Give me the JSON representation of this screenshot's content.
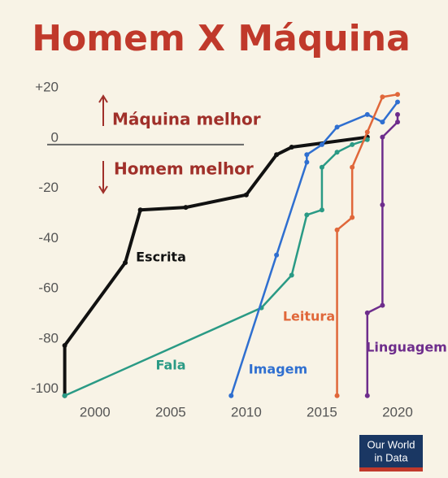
{
  "chart_data": {
    "type": "line",
    "title": "Homem X Máquina",
    "annotations": [
      "Máquina melhor",
      "Homem melhor"
    ],
    "logo": [
      "Our World",
      "in Data"
    ],
    "xlim": [
      1997,
      2021
    ],
    "xticks": [
      2000,
      2005,
      2010,
      2015,
      2020
    ],
    "ylim": [
      -103,
      22
    ],
    "yticks": [
      {
        "value": 20,
        "label": "+20"
      },
      0,
      -20,
      -40,
      -60,
      -80,
      -100
    ],
    "grid": false,
    "series": [
      {
        "name": "Escrita",
        "color": "#111111",
        "x": [
          1998,
          1998,
          2002,
          2003,
          2006,
          2010,
          2012,
          2013,
          2018
        ],
        "values": [
          -100,
          -80,
          -47,
          -26,
          -25,
          -20,
          -4,
          -1,
          3
        ]
      },
      {
        "name": "Fala",
        "color": "#2a9a85",
        "x": [
          1998,
          2011,
          2013,
          2014,
          2015,
          2015,
          2016,
          2017,
          2018
        ],
        "values": [
          -100,
          -65,
          -52,
          -28,
          -26,
          -9,
          -3,
          0,
          2
        ]
      },
      {
        "name": "Imagem",
        "color": "#2f6fd0",
        "x": [
          2009,
          2012,
          2014,
          2014,
          2015,
          2016,
          2018,
          2019,
          2020
        ],
        "values": [
          -100,
          -44,
          -7,
          -4,
          0,
          7,
          12,
          9,
          17
        ]
      },
      {
        "name": "Leitura",
        "color": "#e0673a",
        "x": [
          2016,
          2016,
          2017,
          2017,
          2018,
          2019,
          2020
        ],
        "values": [
          -100,
          -34,
          -29,
          -9,
          5,
          19,
          20
        ]
      },
      {
        "name": "Linguagem",
        "color": "#6e2d8c",
        "x": [
          2018,
          2018,
          2019,
          2019,
          2019,
          2020,
          2020
        ],
        "values": [
          -100,
          -67,
          -64,
          -24,
          3,
          9,
          12
        ]
      }
    ]
  }
}
